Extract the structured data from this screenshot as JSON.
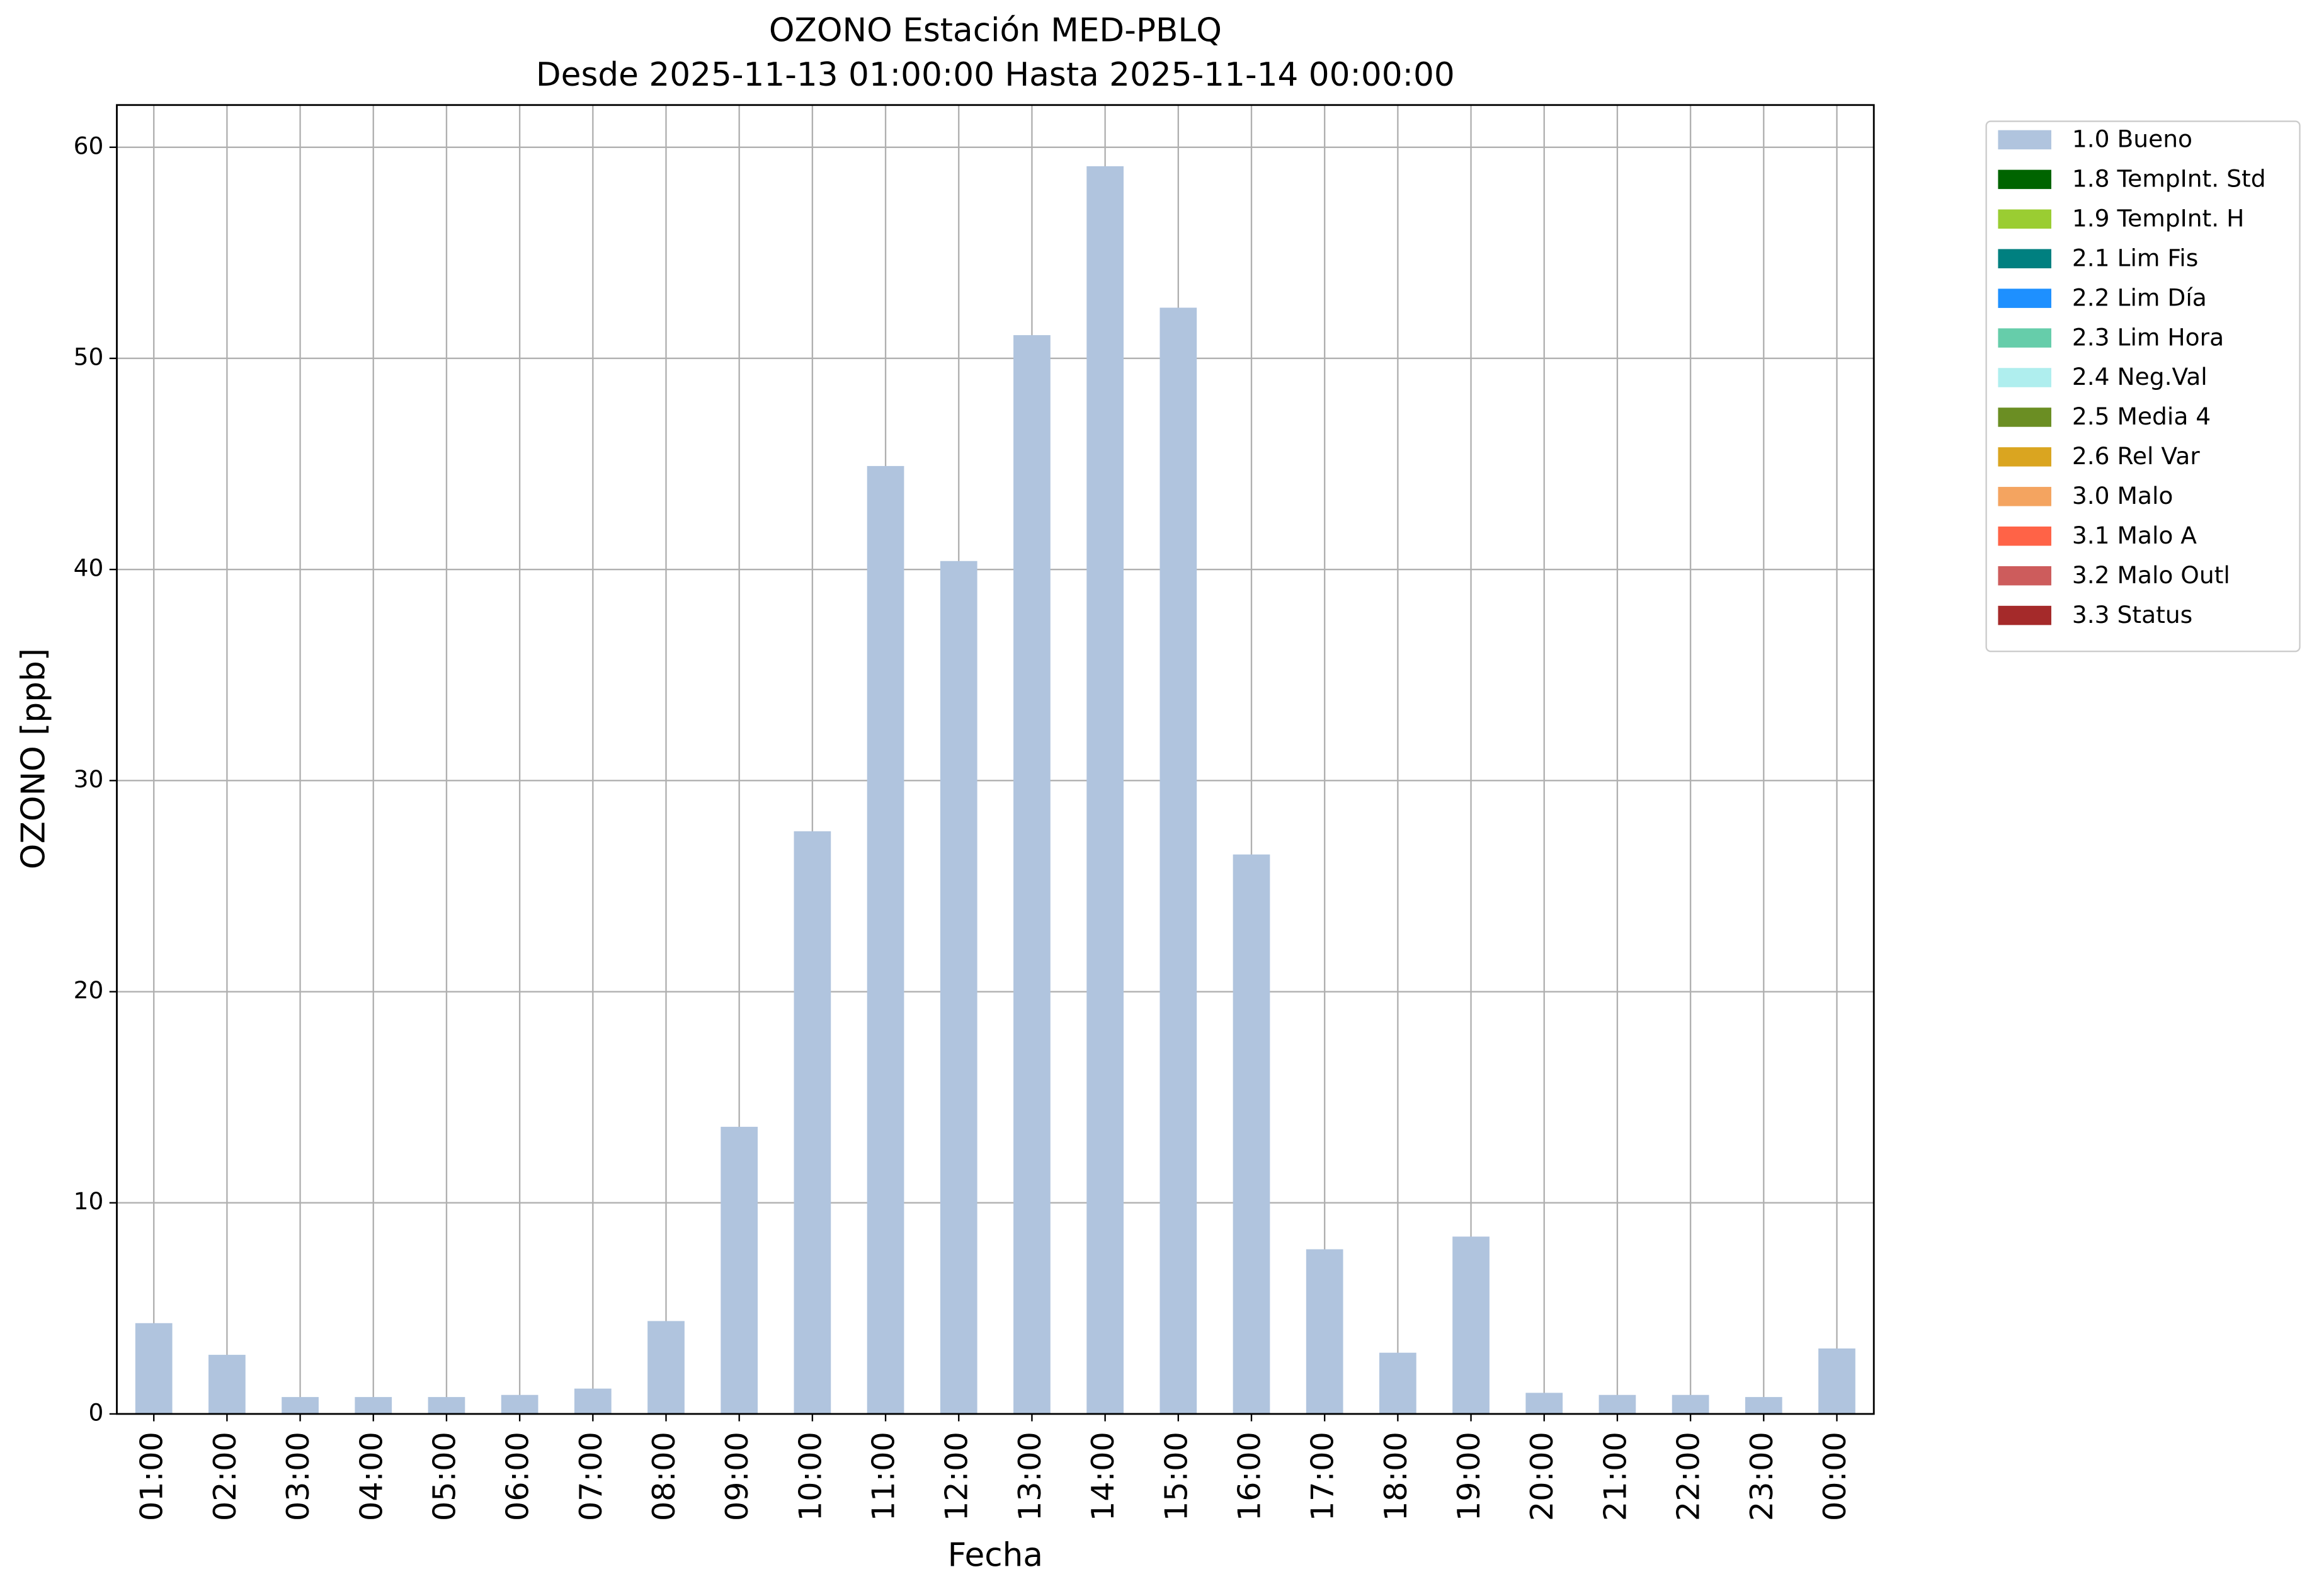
{
  "chart_data": {
    "type": "stacked-bar",
    "title": "OZONO Estación MED-PBLQ",
    "subtitle": "Desde 2025-11-13 01:00:00 Hasta 2025-11-14 00:00:00",
    "x_label": "Fecha",
    "y_label": "OZONO [ppb]",
    "categories": [
      "01:00",
      "02:00",
      "03:00",
      "04:00",
      "05:00",
      "06:00",
      "07:00",
      "08:00",
      "09:00",
      "10:00",
      "11:00",
      "12:00",
      "13:00",
      "14:00",
      "15:00",
      "16:00",
      "17:00",
      "18:00",
      "19:00",
      "20:00",
      "21:00",
      "22:00",
      "23:00",
      "00:00"
    ],
    "series": [
      {
        "name": "1.0 Bueno",
        "color": "#b0c4de",
        "values": [
          4.3,
          2.8,
          0.8,
          0.8,
          0.8,
          0.9,
          1.2,
          4.4,
          13.6,
          27.6,
          44.9,
          40.4,
          51.1,
          59.1,
          52.4,
          26.5,
          7.8,
          2.9,
          8.4,
          1.0,
          0.9,
          0.9,
          0.8,
          3.1
        ]
      },
      {
        "name": "1.8 TempInt. Std",
        "color": "#006400",
        "values": [
          0,
          0,
          0,
          0,
          0,
          0,
          0,
          0,
          0,
          0,
          0,
          0,
          0,
          0,
          0,
          0,
          0,
          0,
          0,
          0,
          0,
          0,
          0,
          0
        ]
      },
      {
        "name": "1.9 TempInt. H",
        "color": "#9acd32",
        "values": [
          0,
          0,
          0,
          0,
          0,
          0,
          0,
          0,
          0,
          0,
          0,
          0,
          0,
          0,
          0,
          0,
          0,
          0,
          0,
          0,
          0,
          0,
          0,
          0
        ]
      },
      {
        "name": "2.1 Lim Fis",
        "color": "#008080",
        "values": [
          0,
          0,
          0,
          0,
          0,
          0,
          0,
          0,
          0,
          0,
          0,
          0,
          0,
          0,
          0,
          0,
          0,
          0,
          0,
          0,
          0,
          0,
          0,
          0
        ]
      },
      {
        "name": "2.2 Lim Día",
        "color": "#1e90ff",
        "values": [
          0,
          0,
          0,
          0,
          0,
          0,
          0,
          0,
          0,
          0,
          0,
          0,
          0,
          0,
          0,
          0,
          0,
          0,
          0,
          0,
          0,
          0,
          0,
          0
        ]
      },
      {
        "name": "2.3 Lim Hora",
        "color": "#66cdaa",
        "values": [
          0,
          0,
          0,
          0,
          0,
          0,
          0,
          0,
          0,
          0,
          0,
          0,
          0,
          0,
          0,
          0,
          0,
          0,
          0,
          0,
          0,
          0,
          0,
          0
        ]
      },
      {
        "name": "2.4 Neg.Val",
        "color": "#afeeee",
        "values": [
          0,
          0,
          0,
          0,
          0,
          0,
          0,
          0,
          0,
          0,
          0,
          0,
          0,
          0,
          0,
          0,
          0,
          0,
          0,
          0,
          0,
          0,
          0,
          0
        ]
      },
      {
        "name": "2.5 Media 4",
        "color": "#6b8e23",
        "values": [
          0,
          0,
          0,
          0,
          0,
          0,
          0,
          0,
          0,
          0,
          0,
          0,
          0,
          0,
          0,
          0,
          0,
          0,
          0,
          0,
          0,
          0,
          0,
          0
        ]
      },
      {
        "name": "2.6 Rel Var",
        "color": "#daa520",
        "values": [
          0,
          0,
          0,
          0,
          0,
          0,
          0,
          0,
          0,
          0,
          0,
          0,
          0,
          0,
          0,
          0,
          0,
          0,
          0,
          0,
          0,
          0,
          0,
          0
        ]
      },
      {
        "name": "3.0 Malo",
        "color": "#f4a460",
        "values": [
          0,
          0,
          0,
          0,
          0,
          0,
          0,
          0,
          0,
          0,
          0,
          0,
          0,
          0,
          0,
          0,
          0,
          0,
          0,
          0,
          0,
          0,
          0,
          0
        ]
      },
      {
        "name": "3.1 Malo A",
        "color": "#ff6347",
        "values": [
          0,
          0,
          0,
          0,
          0,
          0,
          0,
          0,
          0,
          0,
          0,
          0,
          0,
          0,
          0,
          0,
          0,
          0,
          0,
          0,
          0,
          0,
          0,
          0
        ]
      },
      {
        "name": "3.2 Malo Outl",
        "color": "#cd5c5c",
        "values": [
          0,
          0,
          0,
          0,
          0,
          0,
          0,
          0,
          0,
          0,
          0,
          0,
          0,
          0,
          0,
          0,
          0,
          0,
          0,
          0,
          0,
          0,
          0,
          0
        ]
      },
      {
        "name": "3.3 Status",
        "color": "#a52a2a",
        "values": [
          0,
          0,
          0,
          0,
          0,
          0,
          0,
          0,
          0,
          0,
          0,
          0,
          0,
          0,
          0,
          0,
          0,
          0,
          0,
          0,
          0,
          0,
          0,
          0
        ]
      }
    ],
    "ylim": [
      0,
      62
    ],
    "yticks": [
      0,
      10,
      20,
      30,
      40,
      50,
      60
    ],
    "grid": true,
    "legend": "outside-right"
  }
}
